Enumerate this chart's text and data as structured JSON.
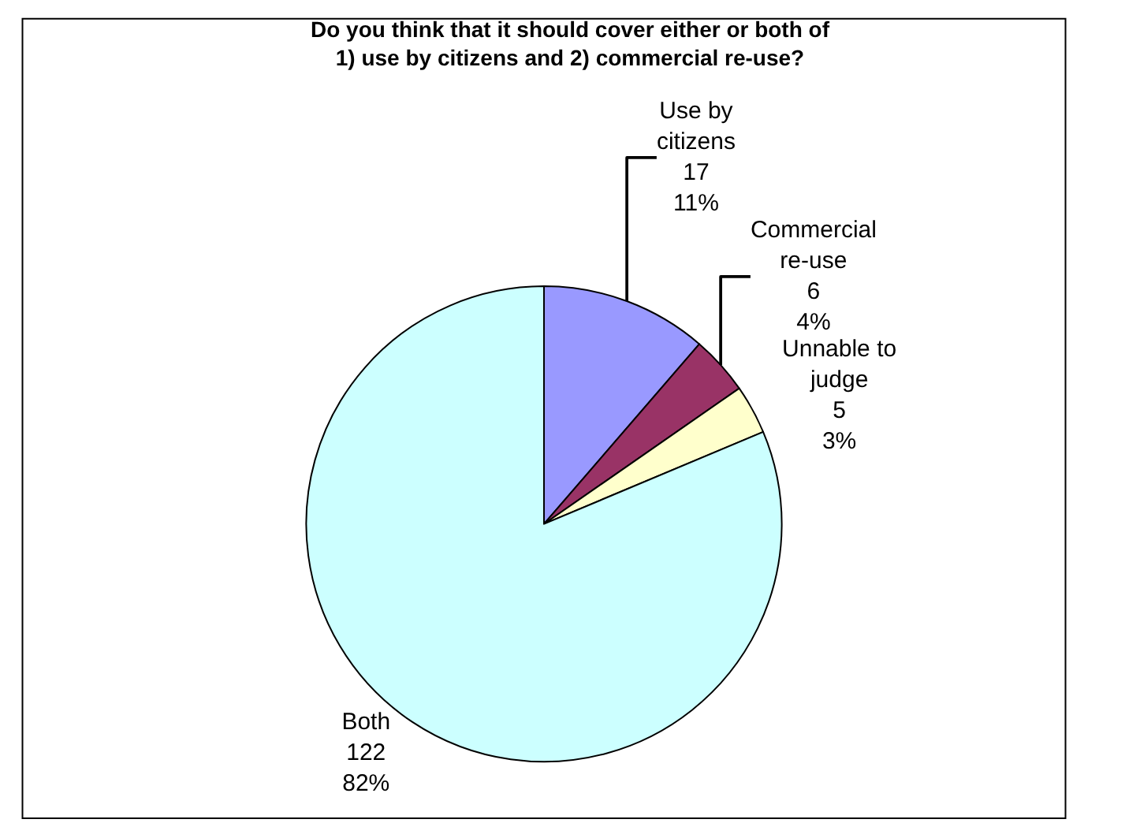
{
  "chart_data": {
    "type": "pie",
    "title": "Do you think that it should cover either or both of 1) use by citizens and 2) commercial re-use?",
    "categories": [
      "Use by\ncitizens",
      "Commercial\nre-use",
      "Unnable to\njudge",
      "Both"
    ],
    "values": [
      17,
      6,
      5,
      122
    ],
    "value_labels": [
      "17\n11%",
      "6\n4%",
      "5\n3%",
      "122\n82%"
    ],
    "colors": [
      "#9999ff",
      "#993366",
      "#ffffcc",
      "#ccffff"
    ],
    "legend": false
  }
}
